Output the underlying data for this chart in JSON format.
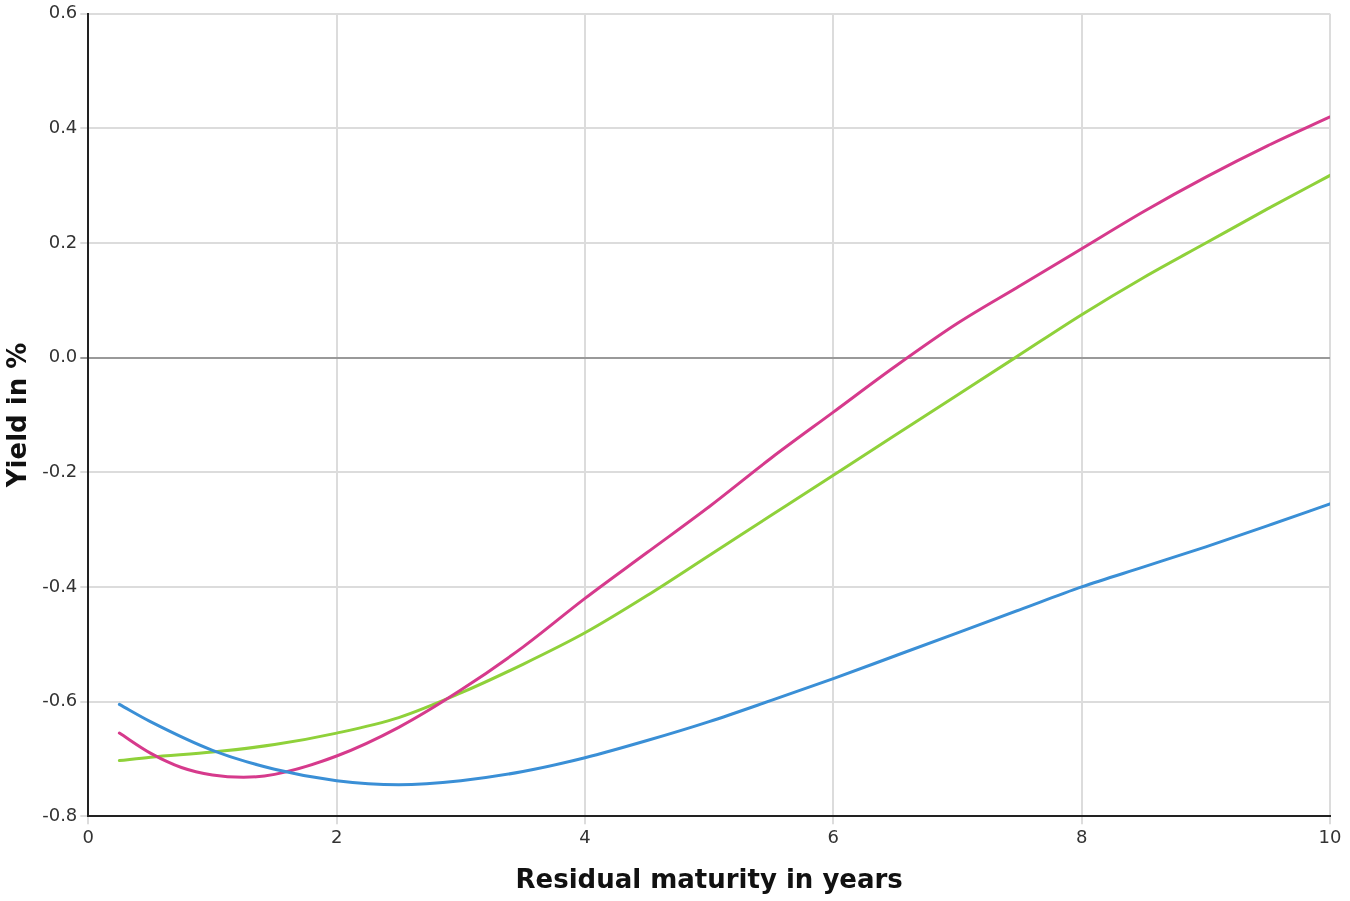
{
  "chart_data": {
    "type": "line",
    "xlabel": "Residual maturity in years",
    "ylabel": "Yield in %",
    "x": [
      0.25,
      0.5,
      1,
      1.5,
      2,
      2.5,
      3,
      3.5,
      4,
      4.5,
      5,
      5.5,
      6,
      6.5,
      7,
      7.5,
      8,
      8.5,
      9,
      9.5,
      10
    ],
    "series": [
      {
        "color": "#3a8fd6",
        "values": [
          -0.605,
          -0.635,
          -0.685,
          -0.718,
          -0.738,
          -0.745,
          -0.738,
          -0.722,
          -0.698,
          -0.668,
          -0.635,
          -0.598,
          -0.56,
          -0.52,
          -0.48,
          -0.44,
          -0.4,
          -0.365,
          -0.33,
          -0.293,
          -0.255
        ]
      },
      {
        "color": "#d63a8c",
        "x": [
          0.25,
          0.5,
          0.75,
          1,
          1.25,
          1.5,
          2,
          2.5,
          3,
          3.5,
          4,
          4.5,
          5,
          5.5,
          6,
          6.5,
          7,
          7.5,
          8,
          8.5,
          9,
          9.5,
          10
        ],
        "values": [
          -0.655,
          -0.69,
          -0.715,
          -0.728,
          -0.732,
          -0.727,
          -0.695,
          -0.645,
          -0.58,
          -0.505,
          -0.42,
          -0.34,
          -0.26,
          -0.175,
          -0.095,
          -0.015,
          0.06,
          0.125,
          0.19,
          0.255,
          0.315,
          0.37,
          0.42
        ]
      },
      {
        "color": "#8fd13a",
        "values": [
          -0.703,
          -0.697,
          -0.688,
          -0.675,
          -0.655,
          -0.628,
          -0.585,
          -0.535,
          -0.48,
          -0.415,
          -0.345,
          -0.275,
          -0.205,
          -0.135,
          -0.065,
          0.005,
          0.075,
          0.14,
          0.2,
          0.26,
          0.318
        ]
      }
    ],
    "xlim": [
      0,
      10
    ],
    "xticks": [
      0,
      2,
      4,
      6,
      8,
      10
    ],
    "ylim": [
      -0.8,
      0.6
    ],
    "yticks": [
      -0.8,
      -0.6,
      -0.4,
      -0.2,
      {
        "value": 0,
        "label": "0.0"
      },
      0.2,
      0.4,
      0.6
    ],
    "grid": true,
    "marker": "none",
    "legend": false
  }
}
